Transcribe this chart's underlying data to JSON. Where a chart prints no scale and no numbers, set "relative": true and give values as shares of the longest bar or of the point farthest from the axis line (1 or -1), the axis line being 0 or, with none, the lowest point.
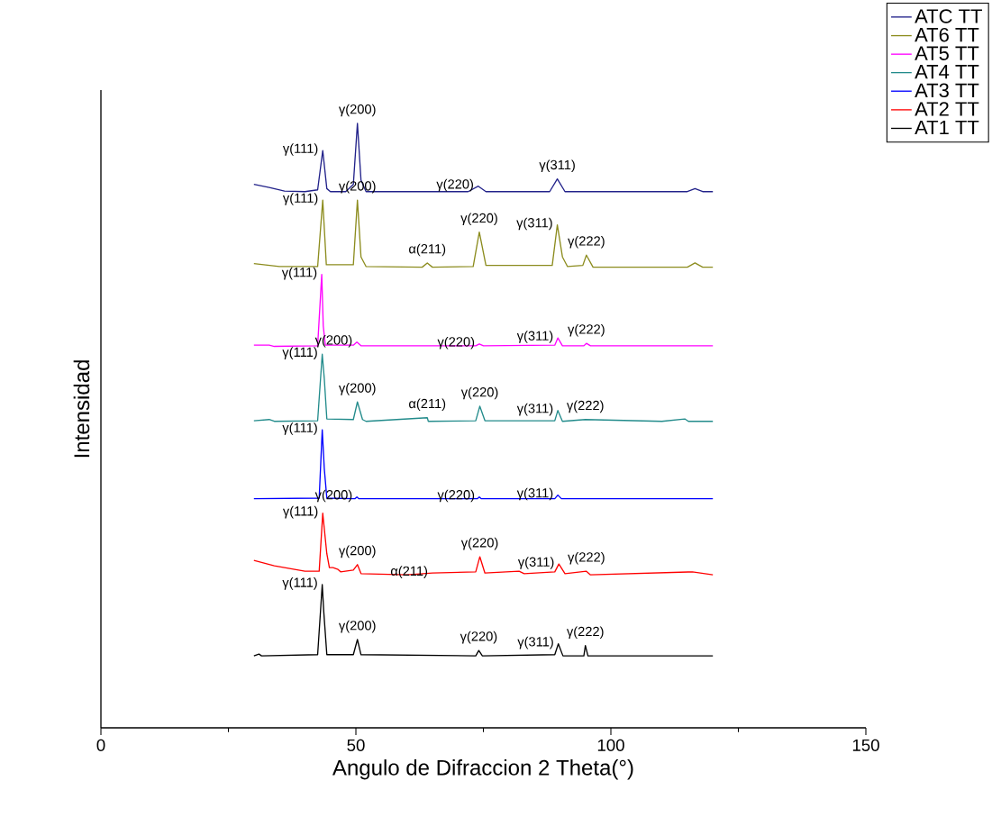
{
  "chart_data": {
    "type": "line",
    "relative": true,
    "xlabel": "Angulo de Difraccion 2 Theta(°)",
    "ylabel": "Intensidad",
    "xlim": [
      0,
      150
    ],
    "xticks": [
      0,
      50,
      100,
      150
    ],
    "legend": "top right",
    "series": [
      {
        "name": "ATC TT",
        "color": "#22228a",
        "x": [
          30,
          33,
          36,
          40,
          42.5,
          43.5,
          44.3,
          45,
          48,
          49.5,
          50.3,
          51,
          52,
          60,
          72,
          74,
          75.5,
          88,
          89.5,
          91,
          115,
          116.5,
          118,
          120
        ],
        "values": [
          0.899,
          0.894,
          0.888,
          0.887,
          0.89,
          0.955,
          0.892,
          0.887,
          0.887,
          0.899,
          1.0,
          0.906,
          0.887,
          0.887,
          0.887,
          0.896,
          0.887,
          0.887,
          0.908,
          0.887,
          0.887,
          0.892,
          0.887,
          0.887
        ]
      },
      {
        "name": "AT6 TT",
        "color": "#8c8c1e",
        "x": [
          30,
          35,
          42.5,
          43.5,
          44.2,
          49.5,
          50.3,
          51,
          52,
          63,
          64,
          65,
          73,
          74.2,
          75.5,
          88.5,
          89.5,
          90.5,
          91.5,
          94.5,
          95.2,
          96.5,
          115,
          116.5,
          118,
          120
        ],
        "values": [
          0.768,
          0.763,
          0.763,
          0.873,
          0.766,
          0.766,
          0.873,
          0.779,
          0.763,
          0.762,
          0.769,
          0.762,
          0.763,
          0.82,
          0.765,
          0.765,
          0.832,
          0.779,
          0.763,
          0.765,
          0.782,
          0.762,
          0.762,
          0.769,
          0.762,
          0.762
        ]
      },
      {
        "name": "AT5 TT",
        "color": "#ff00ff",
        "x": [
          30,
          33,
          34,
          42.5,
          43.3,
          43.6,
          44,
          49.5,
          50.2,
          51,
          73.5,
          74.2,
          75,
          89,
          89.6,
          90.5,
          94.7,
          95.2,
          96,
          120
        ],
        "values": [
          0.633,
          0.633,
          0.631,
          0.632,
          0.75,
          0.665,
          0.633,
          0.633,
          0.638,
          0.632,
          0.632,
          0.635,
          0.632,
          0.633,
          0.645,
          0.632,
          0.632,
          0.636,
          0.632,
          0.632
        ]
      },
      {
        "name": "AT4 TT",
        "color": "#228b8b",
        "x": [
          30,
          33,
          34,
          42.5,
          43.4,
          43.8,
          44.3,
          49.5,
          50.3,
          51.3,
          52,
          64,
          64.2,
          73.5,
          74.3,
          75.3,
          89,
          89.6,
          90.5,
          95,
          110,
          114.5,
          115.2,
          120
        ],
        "values": [
          0.508,
          0.51,
          0.507,
          0.508,
          0.618,
          0.578,
          0.511,
          0.51,
          0.539,
          0.51,
          0.507,
          0.513,
          0.507,
          0.508,
          0.532,
          0.508,
          0.508,
          0.525,
          0.507,
          0.51,
          0.507,
          0.511,
          0.507,
          0.507
        ]
      },
      {
        "name": "AT3 TT",
        "color": "#0000ff",
        "x": [
          30,
          42.8,
          43.4,
          43.8,
          44.3,
          49.8,
          50.2,
          50.6,
          73.8,
          74.2,
          74.6,
          89,
          89.6,
          90.3,
          120
        ],
        "values": [
          0.379,
          0.38,
          0.493,
          0.429,
          0.38,
          0.379,
          0.382,
          0.379,
          0.379,
          0.382,
          0.379,
          0.379,
          0.385,
          0.379,
          0.379
        ]
      },
      {
        "name": "AT2 TT",
        "color": "#ff0000",
        "x": [
          30,
          34,
          40,
          42.8,
          43.5,
          44.3,
          44.8,
          45.5,
          46.5,
          47,
          49.5,
          50.3,
          51,
          60,
          65,
          73.5,
          74.3,
          75.3,
          82,
          83,
          89,
          89.8,
          91,
          95.2,
          96,
          116,
          120
        ],
        "values": [
          0.277,
          0.268,
          0.259,
          0.259,
          0.355,
          0.288,
          0.265,
          0.265,
          0.262,
          0.258,
          0.261,
          0.27,
          0.255,
          0.253,
          0.256,
          0.258,
          0.283,
          0.256,
          0.259,
          0.255,
          0.258,
          0.271,
          0.255,
          0.259,
          0.253,
          0.258,
          0.253
        ]
      },
      {
        "name": "AT1 TT",
        "color": "#000000",
        "x": [
          30,
          31,
          31.5,
          42.5,
          43.4,
          43.7,
          44.3,
          49.5,
          50.3,
          51,
          73.5,
          74.1,
          74.8,
          89,
          89.7,
          90.6,
          94.7,
          95,
          95.5,
          120
        ],
        "values": [
          0.119,
          0.122,
          0.119,
          0.121,
          0.237,
          0.192,
          0.121,
          0.121,
          0.146,
          0.121,
          0.119,
          0.128,
          0.119,
          0.121,
          0.139,
          0.119,
          0.119,
          0.136,
          0.119,
          0.119
        ]
      }
    ],
    "annotations": [
      {
        "text": "γ(111)",
        "x": 43.5,
        "y": 0.955
      },
      {
        "text": "γ(200)",
        "x": 50.3,
        "y": 1.0
      },
      {
        "text": "γ(220)",
        "x": 74,
        "y": 0.896
      },
      {
        "text": "γ(311)",
        "x": 89.5,
        "y": 0.908
      },
      {
        "text": "γ(111)",
        "x": 43.5,
        "y": 0.873
      },
      {
        "text": "γ(200)",
        "x": 50.3,
        "y": 0.873
      },
      {
        "text": "α(211)",
        "x": 64,
        "y": 0.769
      },
      {
        "text": "γ(220)",
        "x": 74.2,
        "y": 0.82
      },
      {
        "text": "γ(311)",
        "x": 89.5,
        "y": 0.832
      },
      {
        "text": "γ(222)",
        "x": 95.2,
        "y": 0.782
      },
      {
        "text": "γ(111)",
        "x": 43.3,
        "y": 0.75
      },
      {
        "text": "γ(200)",
        "x": 50.2,
        "y": 0.638
      },
      {
        "text": "γ(220)",
        "x": 74.2,
        "y": 0.635
      },
      {
        "text": "γ(311)",
        "x": 89.6,
        "y": 0.645
      },
      {
        "text": "γ(222)",
        "x": 95.2,
        "y": 0.636
      },
      {
        "text": "γ(111)",
        "x": 43.4,
        "y": 0.618
      },
      {
        "text": "γ(200)",
        "x": 50.3,
        "y": 0.539
      },
      {
        "text": "α(211)",
        "x": 64,
        "y": 0.513
      },
      {
        "text": "γ(220)",
        "x": 74.3,
        "y": 0.532
      },
      {
        "text": "γ(311)",
        "x": 89.6,
        "y": 0.525
      },
      {
        "text": "γ(222)",
        "x": 95,
        "y": 0.51
      },
      {
        "text": "γ(111)",
        "x": 43.4,
        "y": 0.493
      },
      {
        "text": "γ(200)",
        "x": 50.2,
        "y": 0.382
      },
      {
        "text": "γ(220)",
        "x": 74.2,
        "y": 0.382
      },
      {
        "text": "γ(311)",
        "x": 89.6,
        "y": 0.385
      },
      {
        "text": "γ(111)",
        "x": 43.5,
        "y": 0.355
      },
      {
        "text": "γ(200)",
        "x": 50.3,
        "y": 0.27
      },
      {
        "text": "α(211)",
        "x": 65,
        "y": 0.256
      },
      {
        "text": "γ(220)",
        "x": 74.3,
        "y": 0.283
      },
      {
        "text": "γ(311)",
        "x": 89.8,
        "y": 0.271
      },
      {
        "text": "γ(222)",
        "x": 95.2,
        "y": 0.259
      },
      {
        "text": "γ(111)",
        "x": 43.4,
        "y": 0.237
      },
      {
        "text": "γ(200)",
        "x": 50.3,
        "y": 0.146
      },
      {
        "text": "γ(220)",
        "x": 74.1,
        "y": 0.128
      },
      {
        "text": "γ(311)",
        "x": 89.7,
        "y": 0.139
      },
      {
        "text": "γ(222)",
        "x": 95,
        "y": 0.136
      }
    ]
  }
}
